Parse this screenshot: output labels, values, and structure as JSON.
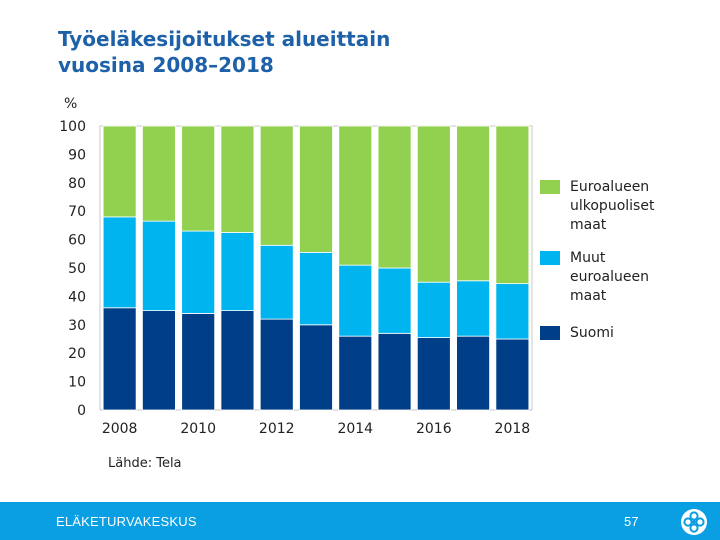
{
  "header": {
    "title_line1": "Työeläkesijoitukset alueittain",
    "title_line2": "vuosina 2008–2018"
  },
  "source": "Lähde: Tela",
  "footer": {
    "brand": "ELÄKETURVAKESKUS",
    "page_number": "57",
    "logo_icon": "flower-logo-icon"
  },
  "colors": {
    "title": "#1f61a8",
    "suomi": "#003f87",
    "muut_euro": "#00b4f0",
    "ulkopuoliset": "#92d050",
    "footer": "#0a9ee3"
  },
  "chart_data": {
    "type": "bar",
    "stacked": true,
    "ylabel": "%",
    "ylim": [
      0,
      100
    ],
    "yticks": [
      0,
      10,
      20,
      30,
      40,
      50,
      60,
      70,
      80,
      90,
      100
    ],
    "xtick_labels": [
      "2008",
      "2010",
      "2012",
      "2014",
      "2016",
      "2018"
    ],
    "categories": [
      "2008",
      "2009",
      "2010",
      "2011",
      "2012",
      "2013",
      "2014",
      "2015",
      "2016",
      "2017",
      "2018"
    ],
    "series": [
      {
        "name": "Suomi",
        "color": "#003f87",
        "values": [
          36,
          35,
          34,
          35,
          32,
          30,
          26,
          27,
          25.5,
          26,
          25
        ]
      },
      {
        "name": "Muut euroalueen maat",
        "color": "#00b4f0",
        "values": [
          32,
          31.5,
          29,
          27.5,
          26,
          25.5,
          25,
          23,
          19.5,
          19.5,
          19.5
        ]
      },
      {
        "name": "Euroalueen ulkopuoliset maat",
        "color": "#92d050",
        "values": [
          32,
          33.5,
          37,
          37.5,
          42,
          44.5,
          49,
          50,
          55,
          54.5,
          55.5
        ]
      }
    ],
    "legend": [
      {
        "lines": [
          "Euroalueen",
          "ulkopuoliset",
          "maat"
        ],
        "color": "#92d050"
      },
      {
        "lines": [
          "Muut",
          "euroalueen",
          "maat"
        ],
        "color": "#00b4f0"
      },
      {
        "lines": [
          "Suomi"
        ],
        "color": "#003f87"
      }
    ],
    "legend_position": "right"
  }
}
